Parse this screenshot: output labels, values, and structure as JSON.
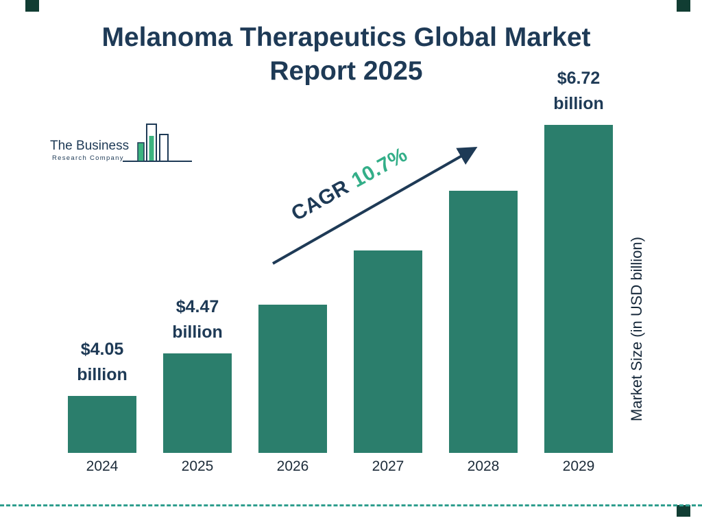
{
  "header": {
    "line1": "Melanoma Therapeutics Global Market",
    "line2": "Report 2025"
  },
  "logo": {
    "name_line1": "The Business",
    "name_line2": "Research Company"
  },
  "cagr": {
    "prefix": "CAGR",
    "value": "10.7%"
  },
  "chart_data": {
    "type": "bar",
    "title": "Melanoma Therapeutics Global Market Report 2025",
    "categories": [
      "2024",
      "2025",
      "2026",
      "2027",
      "2028",
      "2029"
    ],
    "values": [
      4.05,
      4.47,
      4.95,
      5.48,
      6.07,
      6.72
    ],
    "unit": "USD billion",
    "bar_labels": [
      {
        "category": "2024",
        "line1": "$4.05",
        "line2": "billion"
      },
      {
        "category": "2025",
        "line1": "$4.47",
        "line2": "billion"
      },
      {
        "category": "2029",
        "line1": "$6.72",
        "line2": "billion"
      }
    ],
    "xlabel": "",
    "ylabel": "Market Size (in USD billion)",
    "cagr_annotation": "CAGR 10.7%",
    "grid": false,
    "legend": false,
    "baseline_not_zero": true,
    "colors": {
      "bar": "#2b7e6c",
      "navy": "#1e3a56",
      "accent_green": "#33ae88",
      "dashed_line": "#2f9e8e",
      "corner_square": "#113d33",
      "logo_green": "#3cb37f"
    }
  }
}
